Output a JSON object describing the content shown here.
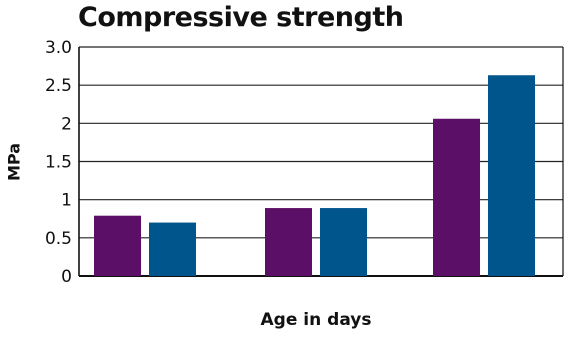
{
  "chart_data": {
    "type": "bar",
    "title": "Compressive strength",
    "xlabel": "Age in days",
    "ylabel": "MPa",
    "ylim": [
      0,
      3.0
    ],
    "yticks": [
      {
        "value": 0,
        "label": "0"
      },
      {
        "value": 0.5,
        "label": "0.5"
      },
      {
        "value": 1,
        "label": "1"
      },
      {
        "value": 1.5,
        "label": "1.5"
      },
      {
        "value": 2,
        "label": "2"
      },
      {
        "value": 2.5,
        "label": "2.5"
      },
      {
        "value": 3,
        "label": "3.0"
      }
    ],
    "categories": [
      "",
      "",
      ""
    ],
    "series": [
      {
        "color": "#5c0f66",
        "values": [
          0.79,
          0.89,
          2.06
        ]
      },
      {
        "color": "#00558d",
        "values": [
          0.7,
          0.89,
          2.63
        ]
      }
    ],
    "grid": true,
    "legend": "none"
  }
}
